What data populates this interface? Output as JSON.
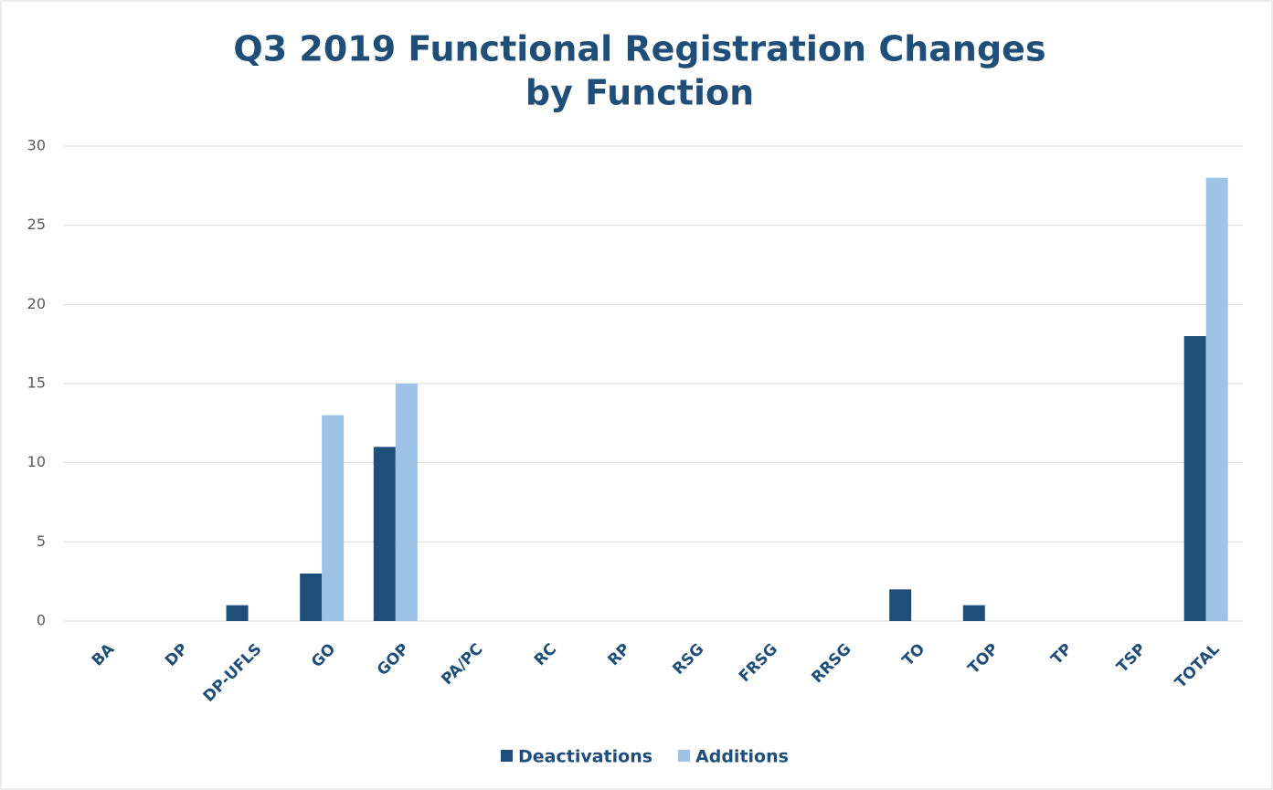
{
  "chart_data": {
    "type": "bar",
    "title": [
      "Q3 2019 Functional Registration Changes",
      "by Function"
    ],
    "categories": [
      "BA",
      "DP",
      "DP-UFLS",
      "GO",
      "GOP",
      "PA/PC",
      "RC",
      "RP",
      "RSG",
      "FRSG",
      "RRSG",
      "TO",
      "TOP",
      "TP",
      "TSP",
      "TOTAL"
    ],
    "series": [
      {
        "name": "Deactivations",
        "color": "#1f4e79",
        "values": [
          0,
          0,
          1,
          3,
          11,
          0,
          0,
          0,
          0,
          0,
          0,
          2,
          1,
          0,
          0,
          18
        ]
      },
      {
        "name": "Additions",
        "color": "#9dc3e6",
        "values": [
          0,
          0,
          0,
          13,
          15,
          0,
          0,
          0,
          0,
          0,
          0,
          0,
          0,
          0,
          0,
          28
        ]
      }
    ],
    "ylim": [
      0,
      30
    ],
    "yticks": [
      0,
      5,
      10,
      15,
      20,
      25,
      30
    ],
    "grid": true,
    "legend": "bottom"
  }
}
